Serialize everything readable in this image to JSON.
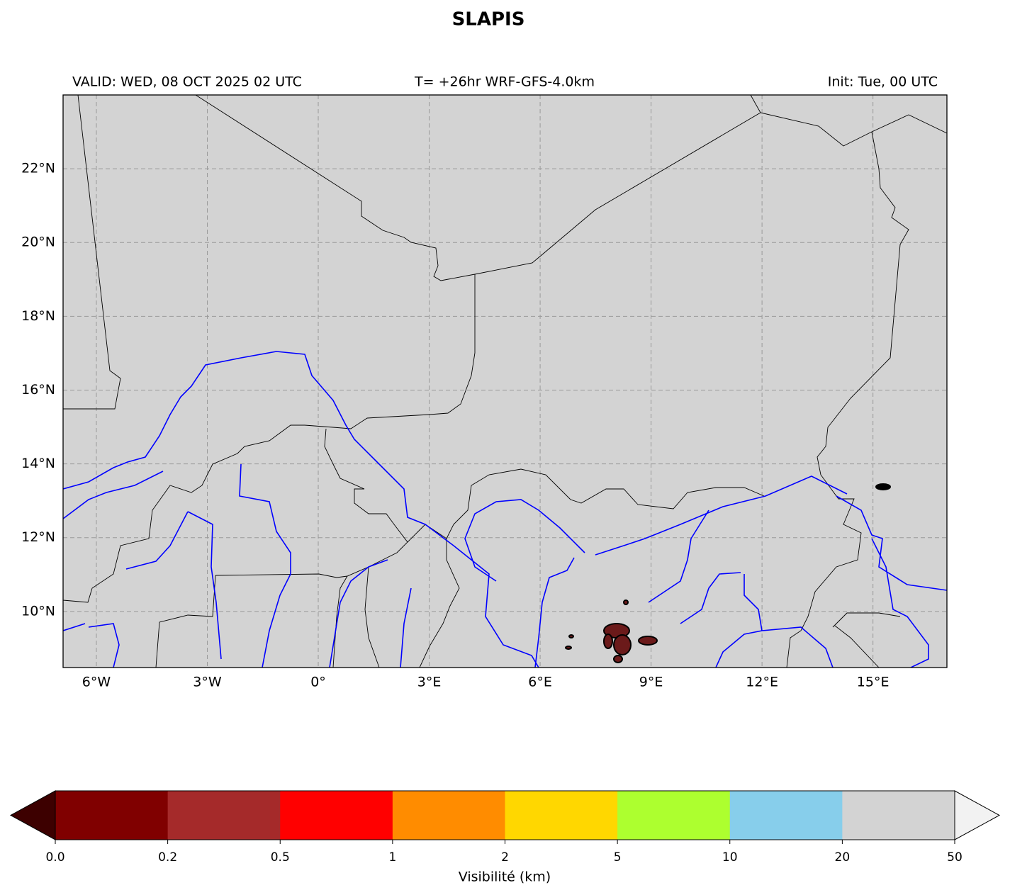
{
  "title": "SLAPIS",
  "header": {
    "left": "VALID: WED, 08 OCT 2025 02 UTC",
    "center": "T= +26hr WRF-GFS-4.0km",
    "right": "Init: Tue, 00 UTC"
  },
  "map": {
    "xlim": [
      -6.9,
      17.0
    ],
    "ylim": [
      8.48,
      24.0
    ],
    "grid": true,
    "xticks": [
      {
        "value": -6,
        "label": "6°W"
      },
      {
        "value": -3,
        "label": "3°W"
      },
      {
        "value": 0,
        "label": "0°"
      },
      {
        "value": 3,
        "label": "3°E"
      },
      {
        "value": 6,
        "label": "6°E"
      },
      {
        "value": 9,
        "label": "9°E"
      },
      {
        "value": 12,
        "label": "12°E"
      },
      {
        "value": 15,
        "label": "15°E"
      }
    ],
    "yticks": [
      {
        "value": 10,
        "label": "10°N"
      },
      {
        "value": 12,
        "label": "12°N"
      },
      {
        "value": 14,
        "label": "14°N"
      },
      {
        "value": 16,
        "label": "16°N"
      },
      {
        "value": 18,
        "label": "18°N"
      },
      {
        "value": 20,
        "label": "20°N"
      },
      {
        "value": 22,
        "label": "22°N"
      }
    ]
  },
  "colorbar": {
    "label": "Visibilité (km)",
    "ticks": [
      {
        "value": 0,
        "label": "0.0"
      },
      0.2,
      0.5,
      1,
      2,
      5,
      10,
      20,
      50
    ],
    "colors": [
      "#800000",
      "#a52a2a",
      "#ff0000",
      "#ff8c00",
      "#ffd700",
      "#adff2f",
      "#87ceeb",
      "#d3d3d3"
    ],
    "under_color": "#3d0000",
    "over_color": "#f2f2f2"
  }
}
